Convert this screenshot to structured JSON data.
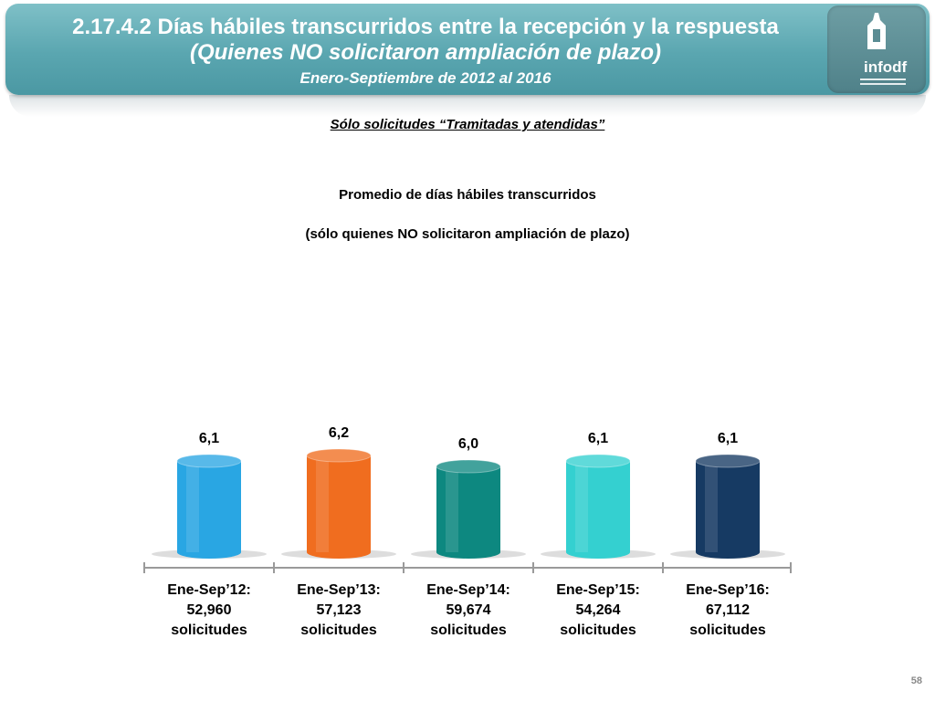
{
  "header": {
    "title": "2.17.4.2 Días hábiles transcurridos entre la recepción y la respuesta",
    "subtitle": "(Quienes NO solicitaron ampliación de plazo)",
    "period": "Enero-Septiembre de 2012 al 2016",
    "logo_text": "infodf"
  },
  "note": "Sólo solicitudes “Tramitadas y atendidas”",
  "chart_data": {
    "type": "bar",
    "title": "Promedio de días hábiles transcurridos",
    "subtitle": "(sólo quienes NO solicitaron ampliación de plazo)",
    "categories": [
      {
        "period": "Ene-Sep’12:",
        "count": "52,960",
        "unit": "solicitudes"
      },
      {
        "period": "Ene-Sep’13:",
        "count": "57,123",
        "unit": "solicitudes"
      },
      {
        "period": "Ene-Sep’14:",
        "count": "59,674",
        "unit": "solicitudes"
      },
      {
        "period": "Ene-Sep’15:",
        "count": "54,264",
        "unit": "solicitudes"
      },
      {
        "period": "Ene-Sep’16:",
        "count": "67,112",
        "unit": "solicitudes"
      }
    ],
    "values": [
      6.1,
      6.2,
      6.0,
      6.1,
      6.1
    ],
    "value_labels": [
      "6,1",
      "6,2",
      "6,0",
      "6,1",
      "6,1"
    ],
    "colors": [
      "#29a6e3",
      "#f06d1f",
      "#0d8880",
      "#34d0d0",
      "#163a63"
    ],
    "shape": "cylinder"
  },
  "page_number": "58"
}
